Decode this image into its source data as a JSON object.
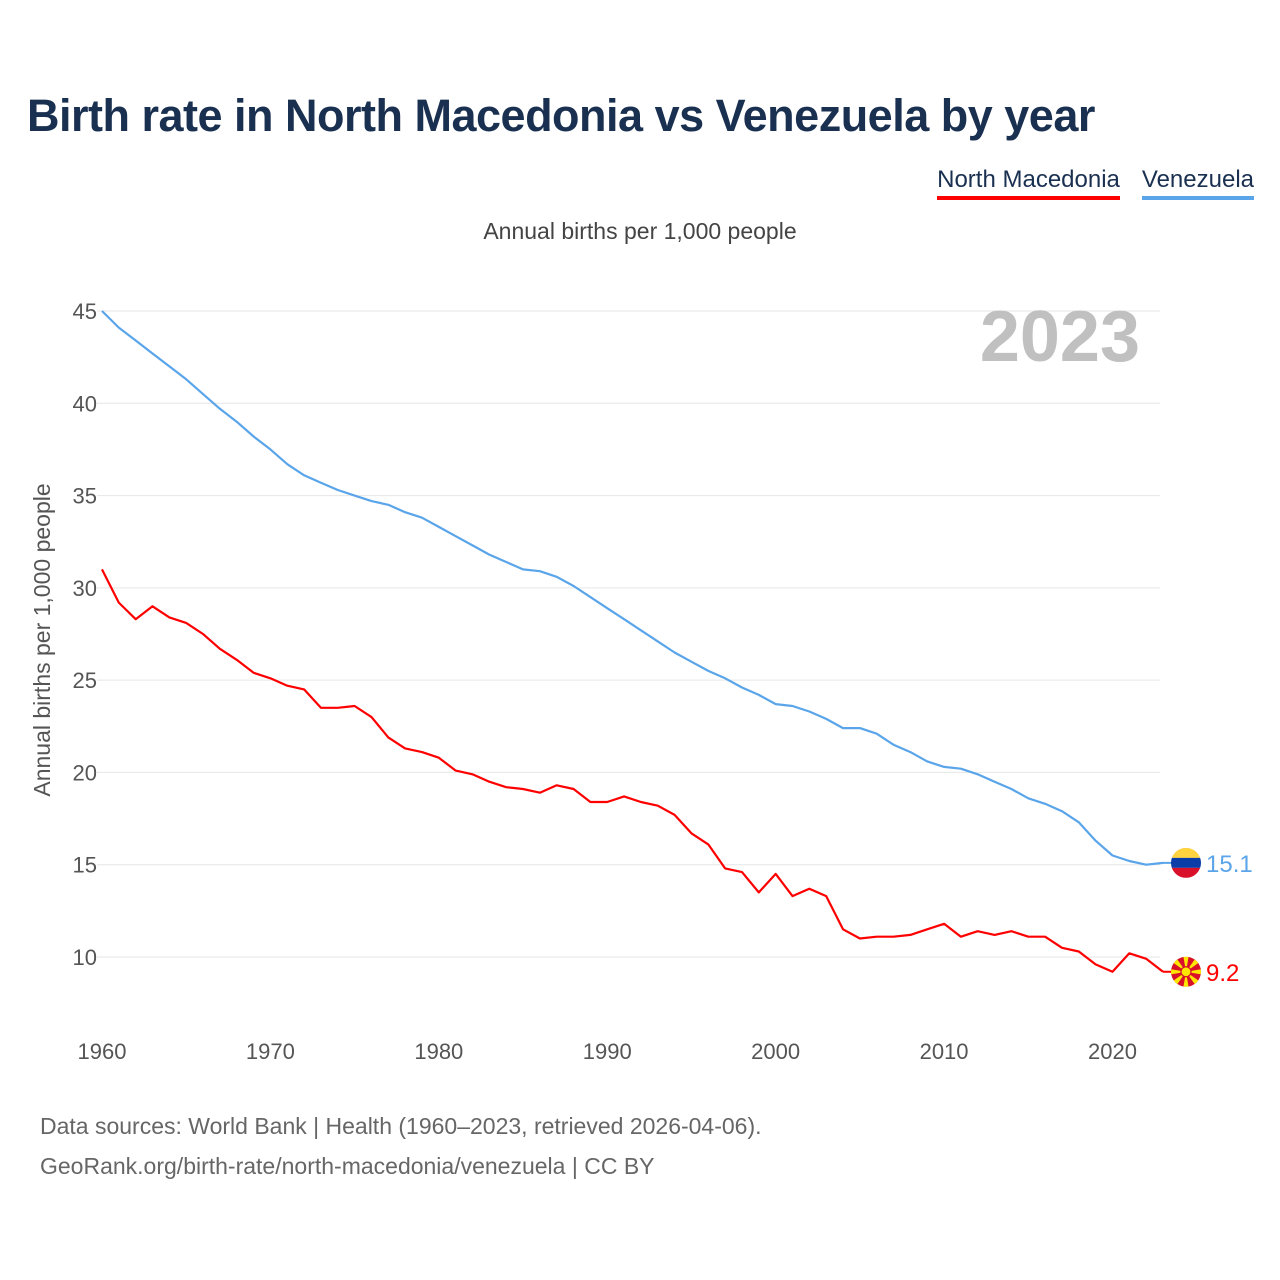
{
  "title": "Birth rate in North Macedonia vs Venezuela by year",
  "subtitle": "Annual births per 1,000 people",
  "year_watermark": "2023",
  "footer": {
    "line1": "Data sources: World Bank | Health (1960–2023, retrieved 2026-04-06).",
    "line2": "GeoRank.org/birth-rate/north-macedonia/venezuela | CC BY"
  },
  "chart_data": {
    "type": "line",
    "title": "Birth rate in North Macedonia vs Venezuela by year",
    "xlabel": "",
    "ylabel": "Annual births per 1,000 people",
    "xlim": [
      1960,
      2023
    ],
    "ylim": [
      10,
      45
    ],
    "x_ticks": [
      1960,
      1970,
      1980,
      1990,
      2000,
      2010,
      2020
    ],
    "y_ticks": [
      10,
      15,
      20,
      25,
      30,
      35,
      40,
      45
    ],
    "grid": true,
    "legend_position": "top-right",
    "x_start": 1960,
    "series": [
      {
        "name": "North Macedonia",
        "color": "#ff0000",
        "end_label": "9.2",
        "flag": "north-macedonia-flag",
        "values": [
          31.0,
          29.2,
          28.3,
          29.0,
          28.4,
          28.1,
          27.5,
          26.7,
          26.1,
          25.4,
          25.1,
          24.7,
          24.5,
          23.5,
          23.5,
          23.6,
          23.0,
          21.9,
          21.3,
          21.1,
          20.8,
          20.1,
          19.9,
          19.5,
          19.2,
          19.1,
          18.9,
          19.3,
          19.1,
          18.4,
          18.4,
          18.7,
          18.4,
          18.2,
          17.7,
          16.7,
          16.1,
          14.8,
          14.6,
          13.5,
          14.5,
          13.3,
          13.7,
          13.3,
          11.5,
          11.0,
          11.1,
          11.1,
          11.2,
          11.5,
          11.8,
          11.1,
          11.4,
          11.2,
          11.4,
          11.1,
          11.1,
          10.5,
          10.3,
          9.6,
          9.2,
          10.2,
          9.9,
          9.2
        ]
      },
      {
        "name": "Venezuela",
        "color": "#5aa5ea",
        "end_label": "15.1",
        "flag": "venezuela-flag",
        "values": [
          45.0,
          44.1,
          43.4,
          42.7,
          42.0,
          41.3,
          40.5,
          39.7,
          39.0,
          38.2,
          37.5,
          36.7,
          36.1,
          35.7,
          35.3,
          35.0,
          34.7,
          34.5,
          34.1,
          33.8,
          33.3,
          32.8,
          32.3,
          31.8,
          31.4,
          31.0,
          30.9,
          30.6,
          30.1,
          29.5,
          28.9,
          28.3,
          27.7,
          27.1,
          26.5,
          26.0,
          25.5,
          25.1,
          24.6,
          24.2,
          23.7,
          23.6,
          23.3,
          22.9,
          22.4,
          22.4,
          22.1,
          21.5,
          21.1,
          20.6,
          20.3,
          20.2,
          19.9,
          19.5,
          19.1,
          18.6,
          18.3,
          17.9,
          17.3,
          16.3,
          15.5,
          15.2,
          15.0,
          15.1
        ]
      }
    ]
  }
}
